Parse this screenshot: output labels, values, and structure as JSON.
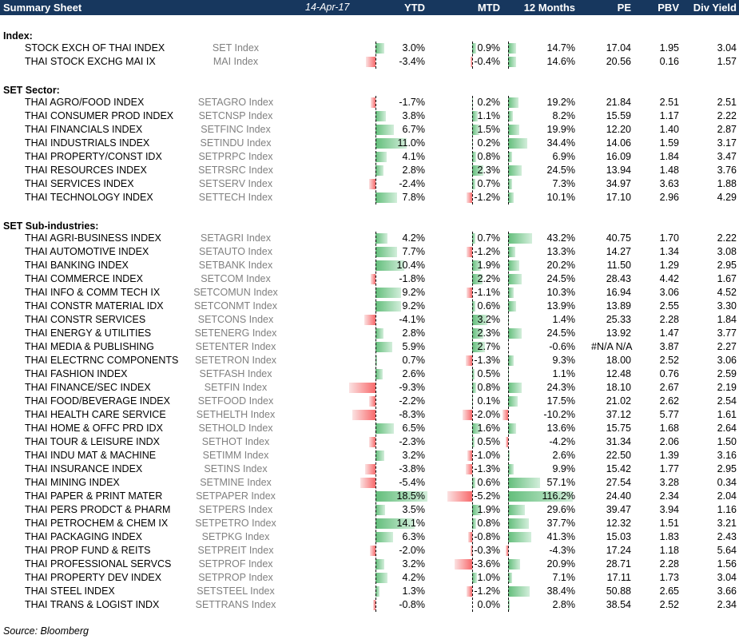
{
  "header": {
    "title": "Summary Sheet",
    "date": "14-Apr-17",
    "ytd": "YTD",
    "mtd": "MTD",
    "m12": "12 Months",
    "pe": "PE",
    "pbv": "PBV",
    "div": "Div Yield"
  },
  "sections": {
    "index": "Index:",
    "sector": "SET Sector:",
    "sub": "SET Sub-industries:"
  },
  "index_rows": [
    {
      "name": "STOCK EXCH OF THAI INDEX",
      "ticker": "SET Index",
      "ytd": 3.0,
      "mtd": 0.9,
      "m12": 14.7,
      "pe": "17.04",
      "pbv": "1.95",
      "div": "3.04"
    },
    {
      "name": "THAI STOCK EXCHG MAI IX",
      "ticker": "MAI Index",
      "ytd": -3.4,
      "mtd": -0.4,
      "m12": 14.6,
      "pe": "20.56",
      "pbv": "0.16",
      "div": "1.57"
    }
  ],
  "sector_rows": [
    {
      "name": "THAI AGRO/FOOD INDEX",
      "ticker": "SETAGRO Index",
      "ytd": -1.7,
      "mtd": 0.2,
      "m12": 19.2,
      "pe": "21.84",
      "pbv": "2.51",
      "div": "2.51"
    },
    {
      "name": "THAI CONSUMER PROD INDEX",
      "ticker": "SETCNSP Index",
      "ytd": 3.8,
      "mtd": 1.1,
      "m12": 8.2,
      "pe": "15.59",
      "pbv": "1.17",
      "div": "2.22"
    },
    {
      "name": "THAI FINANCIALS INDEX",
      "ticker": "SETFINC Index",
      "ytd": 6.7,
      "mtd": 1.5,
      "m12": 19.9,
      "pe": "12.20",
      "pbv": "1.40",
      "div": "2.87"
    },
    {
      "name": "THAI INDUSTRIALS INDEX",
      "ticker": "SETINDU Index",
      "ytd": 11.0,
      "mtd": 0.2,
      "m12": 34.4,
      "pe": "14.06",
      "pbv": "1.59",
      "div": "3.17"
    },
    {
      "name": "THAI PROPERTY/CONST IDX",
      "ticker": "SETPRPC Index",
      "ytd": 4.1,
      "mtd": 0.8,
      "m12": 6.9,
      "pe": "16.09",
      "pbv": "1.84",
      "div": "3.47"
    },
    {
      "name": "THAI RESOURCES INDEX",
      "ticker": "SETRSRC Index",
      "ytd": 2.8,
      "mtd": 2.3,
      "m12": 24.5,
      "pe": "13.94",
      "pbv": "1.48",
      "div": "3.76"
    },
    {
      "name": "THAI SERVICES INDEX",
      "ticker": "SETSERV Index",
      "ytd": -2.4,
      "mtd": 0.7,
      "m12": 7.3,
      "pe": "34.97",
      "pbv": "3.63",
      "div": "1.88"
    },
    {
      "name": "THAI TECHNOLOGY INDEX",
      "ticker": "SETTECH Index",
      "ytd": 7.8,
      "mtd": -1.2,
      "m12": 10.1,
      "pe": "17.10",
      "pbv": "2.96",
      "div": "4.29"
    }
  ],
  "sub_rows": [
    {
      "name": "THAI AGRI-BUSINESS INDEX",
      "ticker": "SETAGRI Index",
      "ytd": 4.2,
      "mtd": 0.7,
      "m12": 43.2,
      "pe": "40.75",
      "pbv": "1.70",
      "div": "2.22"
    },
    {
      "name": "THAI AUTOMOTIVE INDEX",
      "ticker": "SETAUTO Index",
      "ytd": 7.7,
      "mtd": -1.2,
      "m12": 13.3,
      "pe": "14.27",
      "pbv": "1.34",
      "div": "3.08"
    },
    {
      "name": "THAI BANKING INDEX",
      "ticker": "SETBANK Index",
      "ytd": 10.4,
      "mtd": 1.9,
      "m12": 20.2,
      "pe": "11.50",
      "pbv": "1.29",
      "div": "2.95"
    },
    {
      "name": "THAI COMMERCE INDEX",
      "ticker": "SETCOM Index",
      "ytd": -1.8,
      "mtd": 2.2,
      "m12": 24.5,
      "pe": "28.43",
      "pbv": "4.42",
      "div": "1.67"
    },
    {
      "name": "THAI INFO & COMM TECH IX",
      "ticker": "SETCOMUN Index",
      "ytd": 9.2,
      "mtd": -1.1,
      "m12": 10.3,
      "pe": "16.94",
      "pbv": "3.06",
      "div": "4.52"
    },
    {
      "name": "THAI CONSTR MATERIAL IDX",
      "ticker": "SETCONMT Index",
      "ytd": 9.2,
      "mtd": 0.6,
      "m12": 13.9,
      "pe": "13.89",
      "pbv": "2.55",
      "div": "3.30"
    },
    {
      "name": "THAI CONSTR SERVICES",
      "ticker": "SETCONS Index",
      "ytd": -4.1,
      "mtd": 3.2,
      "m12": 1.4,
      "pe": "25.33",
      "pbv": "2.28",
      "div": "1.84"
    },
    {
      "name": "THAI ENERGY & UTILITIES",
      "ticker": "SETENERG Index",
      "ytd": 2.8,
      "mtd": 2.3,
      "m12": 24.5,
      "pe": "13.92",
      "pbv": "1.47",
      "div": "3.77"
    },
    {
      "name": "THAI MEDIA & PUBLISHING",
      "ticker": "SETENTER Index",
      "ytd": 5.9,
      "mtd": 2.7,
      "m12": -0.6,
      "pe": "#N/A N/A",
      "pbv": "3.87",
      "div": "2.27"
    },
    {
      "name": "THAI ELECTRNC COMPONENTS",
      "ticker": "SETETRON Index",
      "ytd": 0.7,
      "mtd": -1.3,
      "m12": 9.3,
      "pe": "18.00",
      "pbv": "2.52",
      "div": "3.06"
    },
    {
      "name": "THAI FASHION INDEX",
      "ticker": "SETFASH Index",
      "ytd": 2.6,
      "mtd": 0.5,
      "m12": 1.1,
      "pe": "12.48",
      "pbv": "0.76",
      "div": "2.59"
    },
    {
      "name": "THAI FINANCE/SEC INDEX",
      "ticker": "SETFIN Index",
      "ytd": -9.3,
      "mtd": 0.8,
      "m12": 24.3,
      "pe": "18.10",
      "pbv": "2.67",
      "div": "2.19"
    },
    {
      "name": "THAI FOOD/BEVERAGE INDEX",
      "ticker": "SETFOOD Index",
      "ytd": -2.2,
      "mtd": 0.1,
      "m12": 17.5,
      "pe": "21.02",
      "pbv": "2.62",
      "div": "2.54"
    },
    {
      "name": "THAI HEALTH CARE SERVICE",
      "ticker": "SETHELTH Index",
      "ytd": -8.3,
      "mtd": -2.0,
      "m12": -10.2,
      "pe": "37.12",
      "pbv": "5.77",
      "div": "1.61"
    },
    {
      "name": "THAI HOME & OFFC PRD IDX",
      "ticker": "SETHOLD Index",
      "ytd": 6.5,
      "mtd": 1.6,
      "m12": 13.6,
      "pe": "15.75",
      "pbv": "1.68",
      "div": "2.64"
    },
    {
      "name": "THAI TOUR & LEISURE INDX",
      "ticker": "SETHOT Index",
      "ytd": -2.3,
      "mtd": 0.5,
      "m12": -4.2,
      "pe": "31.34",
      "pbv": "2.06",
      "div": "1.50"
    },
    {
      "name": "THAI INDU MAT & MACHINE",
      "ticker": "SETIMM Index",
      "ytd": 3.2,
      "mtd": -1.0,
      "m12": 2.6,
      "pe": "22.50",
      "pbv": "1.39",
      "div": "3.16"
    },
    {
      "name": "THAI INSURANCE INDEX",
      "ticker": "SETINS Index",
      "ytd": -3.8,
      "mtd": -1.3,
      "m12": 9.9,
      "pe": "15.42",
      "pbv": "1.77",
      "div": "2.95"
    },
    {
      "name": "THAI MINING INDEX",
      "ticker": "SETMINE Index",
      "ytd": -5.4,
      "mtd": 0.6,
      "m12": 57.1,
      "pe": "27.54",
      "pbv": "3.28",
      "div": "0.34"
    },
    {
      "name": "THAI PAPER & PRINT MATER",
      "ticker": "SETPAPER Index",
      "ytd": 18.5,
      "mtd": -5.2,
      "m12": 116.2,
      "pe": "24.40",
      "pbv": "2.34",
      "div": "2.04"
    },
    {
      "name": "THAI PERS PRODCT & PHARM",
      "ticker": "SETPERS Index",
      "ytd": 3.5,
      "mtd": 1.9,
      "m12": 29.6,
      "pe": "39.47",
      "pbv": "3.94",
      "div": "1.16"
    },
    {
      "name": "THAI PETROCHEM & CHEM IX",
      "ticker": "SETPETRO Index",
      "ytd": 14.1,
      "mtd": 0.8,
      "m12": 37.7,
      "pe": "12.32",
      "pbv": "1.51",
      "div": "3.21"
    },
    {
      "name": "THAI PACKAGING INDEX",
      "ticker": "SETPKG Index",
      "ytd": 6.3,
      "mtd": -0.8,
      "m12": 41.3,
      "pe": "15.03",
      "pbv": "1.83",
      "div": "2.43"
    },
    {
      "name": "THAI PROP FUND & REITS",
      "ticker": "SETPREIT Index",
      "ytd": -2.0,
      "mtd": -0.3,
      "m12": -4.3,
      "pe": "17.24",
      "pbv": "1.18",
      "div": "5.64"
    },
    {
      "name": "THAI PROFESSIONAL SERVCS",
      "ticker": "SETPROF Index",
      "ytd": 3.2,
      "mtd": -3.6,
      "m12": 20.9,
      "pe": "28.71",
      "pbv": "2.28",
      "div": "1.56"
    },
    {
      "name": "THAI PROPERTY DEV INDEX",
      "ticker": "SETPROP Index",
      "ytd": 4.2,
      "mtd": 1.0,
      "m12": 7.1,
      "pe": "17.11",
      "pbv": "1.73",
      "div": "3.04"
    },
    {
      "name": "THAI STEEL INDEX",
      "ticker": "SETSTEEL Index",
      "ytd": 1.3,
      "mtd": -1.2,
      "m12": 38.4,
      "pe": "50.88",
      "pbv": "2.65",
      "div": "3.66"
    },
    {
      "name": "THAI TRANS & LOGIST INDX",
      "ticker": "SETTRANS Index",
      "ytd": -0.8,
      "mtd": 0.0,
      "m12": 2.8,
      "pe": "38.54",
      "pbv": "2.52",
      "div": "2.34"
    }
  ],
  "source": "Source: Bloomberg",
  "colors": {
    "header_bg": "#17375e",
    "positive": "#63be7b",
    "negative": "#f8696b",
    "ticker_text": "#808080"
  }
}
